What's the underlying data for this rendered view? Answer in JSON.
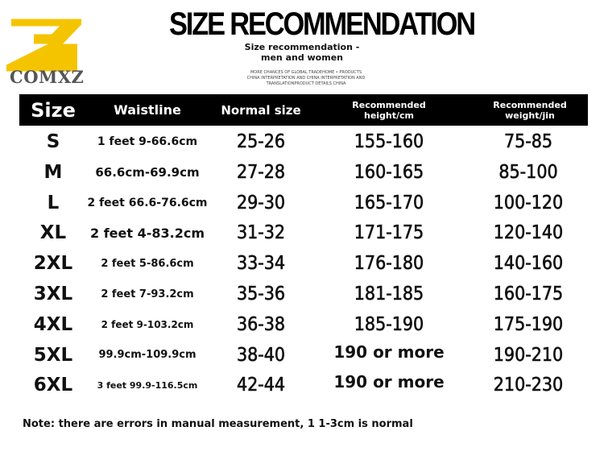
{
  "logo": {
    "brand": "COMXZ",
    "color": "#f5c400"
  },
  "title": "SIZE RECOMMENDATION",
  "subtitle": "Size recommendation - men and women",
  "fine_print": [
    "MORE CHANCES OF GLOBAL TRADEHOME • PRODUCTS",
    "CHINA INTERPRETATION AND CHINA INTERPRETATION AND",
    "TRANSLATIONPRODUCT DETAILS CHINA"
  ],
  "table": {
    "headers": [
      "Size",
      "Waistline",
      "Normal size",
      "Recommended height/cm",
      "Recommended weight/jin"
    ],
    "rows": [
      [
        "S",
        "1 feet 9-66.6cm",
        "25-26",
        "155-160",
        "75-85"
      ],
      [
        "M",
        "66.6cm-69.9cm",
        "27-28",
        "160-165",
        "85-100"
      ],
      [
        "L",
        "2 feet 66.6-76.6cm",
        "29-30",
        "165-170",
        "100-120"
      ],
      [
        "XL",
        "2 feet 4-83.2cm",
        "31-32",
        "171-175",
        "120-140"
      ],
      [
        "2XL",
        "2 feet 5-86.6cm",
        "33-34",
        "176-180",
        "140-160"
      ],
      [
        "3XL",
        "2 feet 7-93.2cm",
        "35-36",
        "181-185",
        "160-175"
      ],
      [
        "4XL",
        "2 feet 9-103.2cm",
        "36-38",
        "185-190",
        "175-190"
      ],
      [
        "5XL",
        "99.9cm-109.9cm",
        "38-40",
        "190 or more",
        "190-210"
      ],
      [
        "6XL",
        "3 feet 99.9-116.5cm",
        "42-44",
        "190 or more",
        "210-230"
      ]
    ]
  },
  "note": "Note: there are errors in manual measurement, 1 1-3cm is normal"
}
